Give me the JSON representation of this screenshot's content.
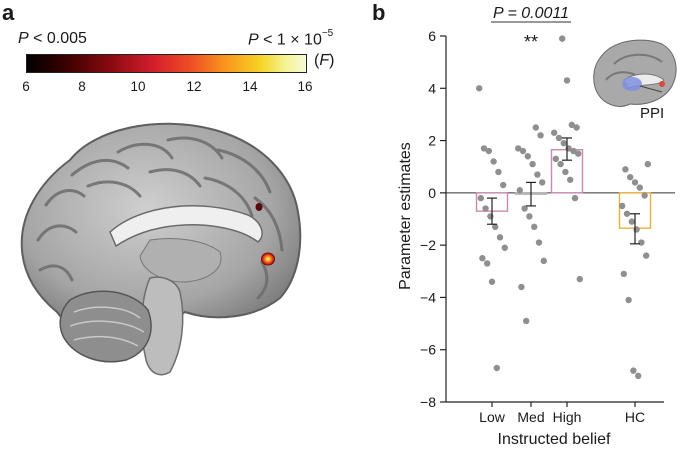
{
  "panel_a": {
    "letter": "a",
    "colorbar": {
      "p_low_italic": "P",
      "p_low_rest": " < 0.005",
      "p_high_italic": "P",
      "p_high_rest": " < 1 × 10",
      "p_high_exp": "−5",
      "stat_open": "(",
      "stat_italic": "F",
      "stat_close": ")",
      "ticks": [
        "6",
        "8",
        "10",
        "12",
        "14",
        "16"
      ]
    }
  },
  "panel_b": {
    "letter": "b",
    "inset_label": "PPI",
    "significance_label": "P = 0.0011",
    "significance_stars": "**",
    "colors": {
      "low": "#c78bb0",
      "med": "#b3b3b3",
      "high": "#c78bb0",
      "hc": "#e8b23a",
      "dots": "#8f8f8f"
    }
  },
  "chart_data": {
    "type": "bar",
    "categories": [
      "Low",
      "Med",
      "High",
      "HC"
    ],
    "xlabel": "Instructed belief",
    "ylabel": "Parameter estimates",
    "ylim": [
      -8,
      6
    ],
    "yticks": [
      "−8",
      "−6",
      "−4",
      "−2",
      "0",
      "2",
      "4",
      "6"
    ],
    "means": [
      -0.7,
      -0.05,
      1.65,
      -1.35
    ],
    "sem_low": [
      -1.2,
      -0.5,
      1.25,
      -1.95
    ],
    "sem_high": [
      -0.2,
      0.4,
      2.1,
      -0.8
    ],
    "points": [
      [
        4.0,
        1.7,
        1.6,
        1.2,
        0.8,
        0.3,
        -0.2,
        -0.6,
        -0.9,
        -1.3,
        -1.7,
        -2.1,
        -2.5,
        -2.7,
        -3.4,
        -6.7
      ],
      [
        2.5,
        2.2,
        1.7,
        1.6,
        1.4,
        1.1,
        0.7,
        0.4,
        0.1,
        -0.6,
        -0.9,
        -1.3,
        -1.9,
        -2.6,
        -3.6,
        -4.9
      ],
      [
        5.9,
        4.3,
        2.6,
        2.5,
        2.3,
        2.1,
        1.9,
        1.7,
        1.6,
        1.5,
        1.3,
        1.1,
        0.8,
        0.5,
        -0.2,
        -3.3
      ],
      [
        1.1,
        0.9,
        0.6,
        0.4,
        0.2,
        -0.1,
        -0.5,
        -0.8,
        -1.1,
        -1.4,
        -1.9,
        -2.4,
        -3.1,
        -4.1,
        -6.8,
        -7.0
      ]
    ]
  }
}
